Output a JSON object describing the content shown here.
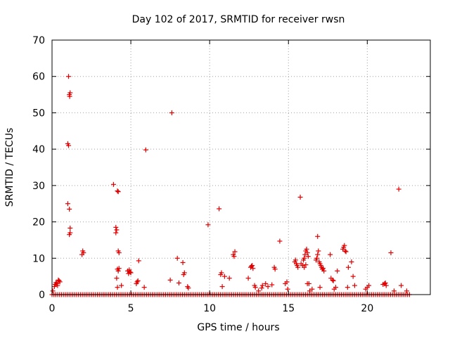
{
  "chart_data": {
    "type": "scatter",
    "title": "Day 102 of 2017, SRMTID for receiver rwsn",
    "xlabel": "GPS time / hours",
    "ylabel": "SRMTID / TECUs",
    "xlim": [
      0,
      24
    ],
    "ylim": [
      0,
      70
    ],
    "xticks": [
      0,
      5,
      10,
      15,
      20
    ],
    "yticks": [
      0,
      10,
      20,
      30,
      40,
      50,
      60,
      70
    ],
    "grid": true,
    "marker": "plus",
    "series": [
      {
        "color": "#e00000",
        "points": [
          [
            0.05,
            1.0
          ],
          [
            0.15,
            2.2
          ],
          [
            0.2,
            2.8
          ],
          [
            0.25,
            3.3
          ],
          [
            0.3,
            3.0
          ],
          [
            0.35,
            2.5
          ],
          [
            0.4,
            4.0
          ],
          [
            0.45,
            3.8
          ],
          [
            0.5,
            3.5
          ],
          [
            1.0,
            41.5
          ],
          [
            1.05,
            41.0
          ],
          [
            1.1,
            55.0
          ],
          [
            1.12,
            54.5
          ],
          [
            1.15,
            55.5
          ],
          [
            1.05,
            60.0
          ],
          [
            1.0,
            25.0
          ],
          [
            1.1,
            23.5
          ],
          [
            1.15,
            18.3
          ],
          [
            1.15,
            17.0
          ],
          [
            1.1,
            16.5
          ],
          [
            1.9,
            11.0
          ],
          [
            1.95,
            12.0
          ],
          [
            2.0,
            11.5
          ],
          [
            3.9,
            30.3
          ],
          [
            4.05,
            18.5
          ],
          [
            4.05,
            17.0
          ],
          [
            4.1,
            17.8
          ],
          [
            4.15,
            28.5
          ],
          [
            4.2,
            28.3
          ],
          [
            4.2,
            12.0
          ],
          [
            4.25,
            11.5
          ],
          [
            4.15,
            7.0
          ],
          [
            4.2,
            6.5
          ],
          [
            4.25,
            7.2
          ],
          [
            4.1,
            4.5
          ],
          [
            4.15,
            2.0
          ],
          [
            4.4,
            2.5
          ],
          [
            4.8,
            6.5
          ],
          [
            4.85,
            5.8
          ],
          [
            4.9,
            6.8
          ],
          [
            4.95,
            6.2
          ],
          [
            5.0,
            6.0
          ],
          [
            5.35,
            3.0
          ],
          [
            5.4,
            3.5
          ],
          [
            5.45,
            3.8
          ],
          [
            5.5,
            9.3
          ],
          [
            5.85,
            2.0
          ],
          [
            5.95,
            39.8
          ],
          [
            7.5,
            4.0
          ],
          [
            7.6,
            50.0
          ],
          [
            7.95,
            10.0
          ],
          [
            8.05,
            3.2
          ],
          [
            8.3,
            8.8
          ],
          [
            8.35,
            5.5
          ],
          [
            8.4,
            6.0
          ],
          [
            8.6,
            2.2
          ],
          [
            8.65,
            1.8
          ],
          [
            9.9,
            19.2
          ],
          [
            10.6,
            23.6
          ],
          [
            10.7,
            5.5
          ],
          [
            10.75,
            6.0
          ],
          [
            10.8,
            2.2
          ],
          [
            10.95,
            5.0
          ],
          [
            11.25,
            4.5
          ],
          [
            11.5,
            11.0
          ],
          [
            11.55,
            10.5
          ],
          [
            11.6,
            11.8
          ],
          [
            12.45,
            4.5
          ],
          [
            12.6,
            7.5
          ],
          [
            12.65,
            7.8
          ],
          [
            12.7,
            8.0
          ],
          [
            12.75,
            7.2
          ],
          [
            12.85,
            2.5
          ],
          [
            12.9,
            2.0
          ],
          [
            13.1,
            1.0
          ],
          [
            13.3,
            1.8
          ],
          [
            13.35,
            2.5
          ],
          [
            13.55,
            3.0
          ],
          [
            13.7,
            2.2
          ],
          [
            13.95,
            2.7
          ],
          [
            14.1,
            7.5
          ],
          [
            14.15,
            7.0
          ],
          [
            14.45,
            14.7
          ],
          [
            14.8,
            3.0
          ],
          [
            14.9,
            3.5
          ],
          [
            14.95,
            1.5
          ],
          [
            15.4,
            9.0
          ],
          [
            15.45,
            9.5
          ],
          [
            15.5,
            8.5
          ],
          [
            15.55,
            8.0
          ],
          [
            15.6,
            7.5
          ],
          [
            15.75,
            26.8
          ],
          [
            15.8,
            8.5
          ],
          [
            15.9,
            8.0
          ],
          [
            15.95,
            9.5
          ],
          [
            16.0,
            10.0
          ],
          [
            16.05,
            11.0
          ],
          [
            16.1,
            12.0
          ],
          [
            16.15,
            12.5
          ],
          [
            16.2,
            11.5
          ],
          [
            16.25,
            10.5
          ],
          [
            16.0,
            7.5
          ],
          [
            16.1,
            8.2
          ],
          [
            16.2,
            3.0
          ],
          [
            16.3,
            3.0
          ],
          [
            16.35,
            1.0
          ],
          [
            16.5,
            1.5
          ],
          [
            16.75,
            9.5
          ],
          [
            16.8,
            10.0
          ],
          [
            16.85,
            11.0
          ],
          [
            16.9,
            12.0
          ],
          [
            16.95,
            9.0
          ],
          [
            17.0,
            8.5
          ],
          [
            17.05,
            8.0
          ],
          [
            17.1,
            7.5
          ],
          [
            17.15,
            7.0
          ],
          [
            17.2,
            7.2
          ],
          [
            17.25,
            6.5
          ],
          [
            16.85,
            16.0
          ],
          [
            17.0,
            2.0
          ],
          [
            17.65,
            11.0
          ],
          [
            17.7,
            4.5
          ],
          [
            17.8,
            4.0
          ],
          [
            17.85,
            3.8
          ],
          [
            17.9,
            1.5
          ],
          [
            18.0,
            2.0
          ],
          [
            18.1,
            6.5
          ],
          [
            18.45,
            12.5
          ],
          [
            18.5,
            13.0
          ],
          [
            18.55,
            13.5
          ],
          [
            18.6,
            12.0
          ],
          [
            18.65,
            11.8
          ],
          [
            18.8,
            7.5
          ],
          [
            18.75,
            2.0
          ],
          [
            19.0,
            9.0
          ],
          [
            19.1,
            5.0
          ],
          [
            19.2,
            2.5
          ],
          [
            19.9,
            1.5
          ],
          [
            20.0,
            2.0
          ],
          [
            20.1,
            2.5
          ],
          [
            21.0,
            2.8
          ],
          [
            21.1,
            3.0
          ],
          [
            21.15,
            3.2
          ],
          [
            21.2,
            2.5
          ],
          [
            21.5,
            11.5
          ],
          [
            21.7,
            1.0
          ],
          [
            22.0,
            29.0
          ],
          [
            22.15,
            2.5
          ],
          [
            22.5,
            1.0
          ]
        ],
        "baseline_ranges": [
          [
            0.0,
            22.7
          ]
        ],
        "baseline_value": 0
      }
    ]
  }
}
